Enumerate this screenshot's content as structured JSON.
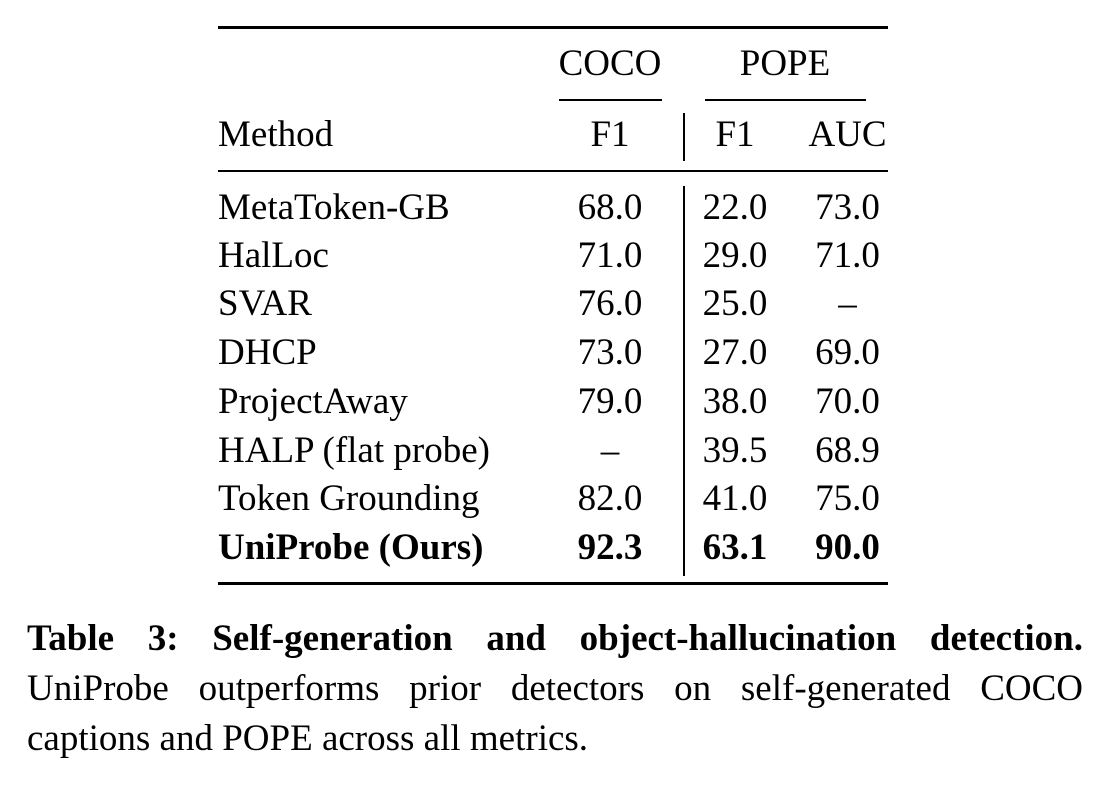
{
  "table": {
    "group_headers": {
      "coco": "COCO",
      "pope": "POPE"
    },
    "column_headers": {
      "method": "Method",
      "coco_f1": "F1",
      "pope_f1": "F1",
      "pope_auc": "AUC"
    },
    "rows": [
      {
        "method": "MetaToken-GB",
        "coco_f1": "68.0",
        "pope_f1": "22.0",
        "pope_auc": "73.0",
        "bold": false
      },
      {
        "method": "HalLoc",
        "coco_f1": "71.0",
        "pope_f1": "29.0",
        "pope_auc": "71.0",
        "bold": false
      },
      {
        "method": "SVAR",
        "coco_f1": "76.0",
        "pope_f1": "25.0",
        "pope_auc": "–",
        "bold": false
      },
      {
        "method": "DHCP",
        "coco_f1": "73.0",
        "pope_f1": "27.0",
        "pope_auc": "69.0",
        "bold": false
      },
      {
        "method": "ProjectAway",
        "coco_f1": "79.0",
        "pope_f1": "38.0",
        "pope_auc": "70.0",
        "bold": false
      },
      {
        "method": "HALP (flat probe)",
        "coco_f1": "–",
        "pope_f1": "39.5",
        "pope_auc": "68.9",
        "bold": false
      },
      {
        "method": "Token Grounding",
        "coco_f1": "82.0",
        "pope_f1": "41.0",
        "pope_auc": "75.0",
        "bold": false
      },
      {
        "method": "UniProbe (Ours)",
        "coco_f1": "92.3",
        "pope_f1": "63.1",
        "pope_auc": "90.0",
        "bold": true
      }
    ]
  },
  "caption": {
    "label": "Table 3:",
    "title": "Self-generation and object-hallucination detection.",
    "line2": "UniProbe outperforms prior detectors on self-generated COCO",
    "line3": "captions and POPE across all metrics."
  }
}
